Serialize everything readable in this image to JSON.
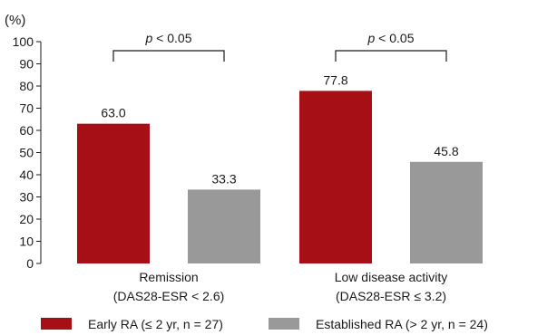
{
  "chart_data": {
    "type": "bar",
    "y_unit_label": "(%)",
    "ylim": [
      0,
      100
    ],
    "ytick_step": 10,
    "categories": [
      {
        "line1": "Remission",
        "line2": "(DAS28-ESR < 2.6)"
      },
      {
        "line1": "Low disease activity",
        "line2": "(DAS28-ESR ≤ 3.2)"
      }
    ],
    "series": [
      {
        "name": "Early RA (≤ 2 yr, n = 27)",
        "color": "#a50f15",
        "values": [
          63.0,
          77.8
        ],
        "labels": [
          "63.0",
          "77.8"
        ]
      },
      {
        "name": "Established RA (> 2 yr, n = 24)",
        "color": "#999999",
        "values": [
          33.3,
          45.8
        ],
        "labels": [
          "33.3",
          "45.8"
        ]
      }
    ],
    "significance": [
      {
        "text_italic": "p",
        "text": " < 0.05"
      },
      {
        "text_italic": "p",
        "text": " < 0.05"
      }
    ],
    "legend_placement": "bottom"
  }
}
